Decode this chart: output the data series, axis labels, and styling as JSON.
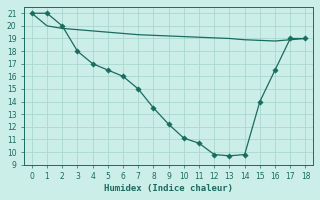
{
  "xlabel": "Humidex (Indice chaleur)",
  "background_color": "#cceee8",
  "grid_color": "#aad8d0",
  "line_color": "#1a6b60",
  "x_data": [
    0,
    1,
    2,
    3,
    4,
    5,
    6,
    7,
    8,
    9,
    10,
    11,
    12,
    13,
    14,
    15,
    16,
    17,
    18
  ],
  "y_steep": [
    21,
    21,
    20,
    18,
    17,
    16.5,
    16,
    15,
    13.5,
    12.2,
    11.1,
    10.7,
    9.8,
    9.7,
    9.8,
    14.0,
    16.5,
    19.0,
    19.0
  ],
  "y_flat": [
    21,
    20,
    19.8,
    19.7,
    19.6,
    19.5,
    19.4,
    19.3,
    19.25,
    19.2,
    19.15,
    19.1,
    19.05,
    19.0,
    18.9,
    18.85,
    18.8,
    18.9,
    19.0
  ],
  "ylim": [
    9,
    21.5
  ],
  "xlim": [
    -0.5,
    18.5
  ],
  "yticks": [
    9,
    10,
    11,
    12,
    13,
    14,
    15,
    16,
    17,
    18,
    19,
    20,
    21
  ],
  "xticks": [
    0,
    1,
    2,
    3,
    4,
    5,
    6,
    7,
    8,
    9,
    10,
    11,
    12,
    13,
    14,
    15,
    16,
    17,
    18
  ],
  "marker_size": 2.8,
  "line_width": 0.9,
  "tick_fontsize": 5.5,
  "xlabel_fontsize": 6.5
}
